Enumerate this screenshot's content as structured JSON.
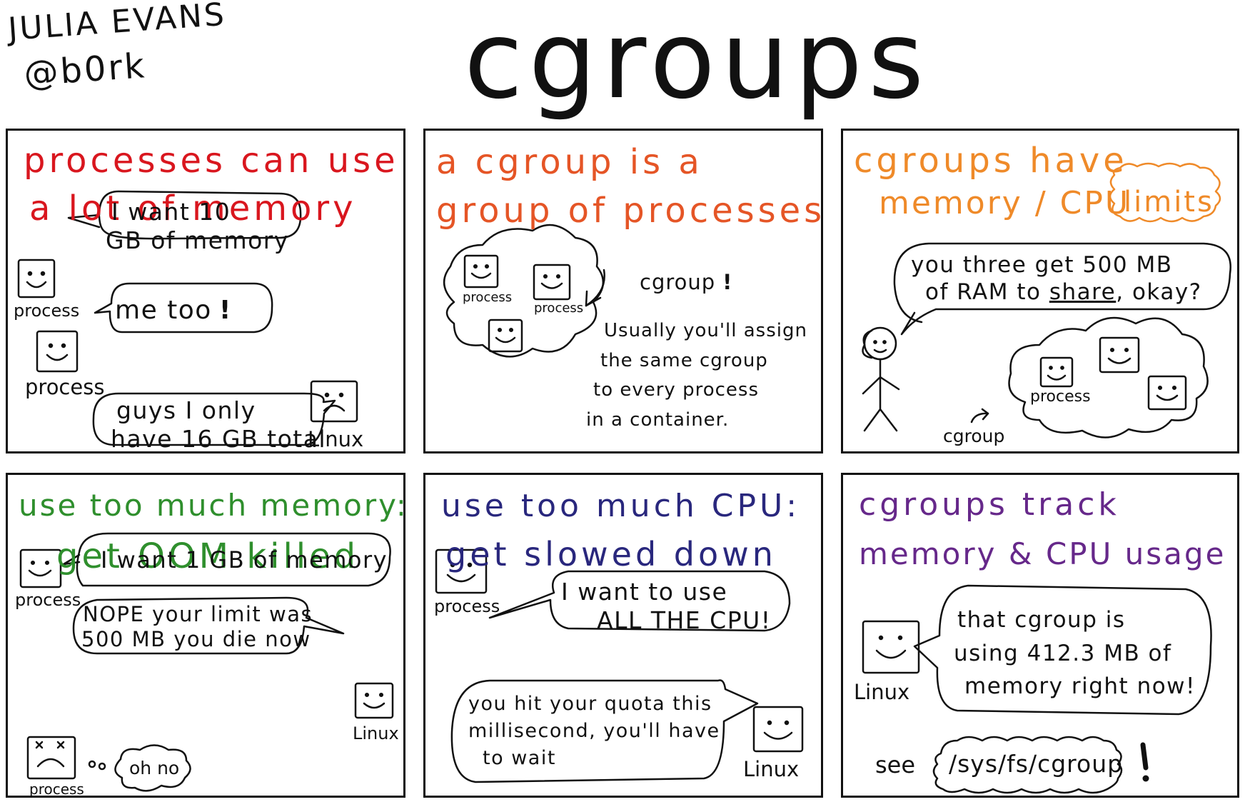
{
  "author": {
    "line1": "JULIA EVANS",
    "line2": "@b0rk"
  },
  "title": "cgroups",
  "colors": {
    "p1": "#d9161e",
    "p2": "#e55526",
    "p3": "#ef8a29",
    "p4": "#2f8f2d",
    "p5": "#29277d",
    "p6": "#66288a",
    "ink": "#111111"
  },
  "panel1": {
    "title_l1": "processes can use",
    "title_l2": "a lot of memory",
    "bubble1_l1": "I want 10",
    "bubble1_l2": "GB of memory",
    "bubble2": "me too",
    "bubble3_l1": "guys I only",
    "bubble3_l2": "have 16 GB total",
    "label_process": "process",
    "label_linux": "Linux"
  },
  "panel2": {
    "title_l1": "a cgroup is a",
    "title_l2": "group of processes",
    "cgroup_label": "cgroup",
    "label_process": "process",
    "note_l1": "Usually you'll assign",
    "note_l2": "the same cgroup",
    "note_l3": "to every process",
    "note_l4": "in a container."
  },
  "panel3": {
    "title_l1": "cgroups have",
    "title_l2": "memory / CPU",
    "limits": "limits",
    "bubble_l1": "you three get 500 MB",
    "bubble_l2_a": "of RAM to",
    "bubble_l2_share": "share",
    "bubble_l2_b": ", okay?",
    "cgroup_label": "cgroup",
    "label_process": "process"
  },
  "panel4": {
    "title_l1": "use too much memory:",
    "title_l2": "get OOM killed",
    "bubble1": "I want 1 GB of memory",
    "bubble2_l1": "NOPE your limit was",
    "bubble2_l2": "500 MB you die now",
    "oh_no": "oh no",
    "label_process": "process",
    "label_linux": "Linux"
  },
  "panel5": {
    "title_l1": "use too much CPU:",
    "title_l2": "get slowed down",
    "bubble1_l1": "I want to use",
    "bubble1_l2": "ALL THE CPU!",
    "bubble2_l1": "you hit your quota this",
    "bubble2_l2": "millisecond, you'll have",
    "bubble2_l3": "to wait",
    "label_process": "process",
    "label_linux": "Linux"
  },
  "panel6": {
    "title_l1": "cgroups track",
    "title_l2": "memory & CPU usage",
    "bubble_l1": "that cgroup is",
    "bubble_l2": "using 412.3 MB of",
    "bubble_l3": "memory right now!",
    "label_linux": "Linux",
    "see": "see",
    "path": "/sys/fs/cgroup"
  }
}
